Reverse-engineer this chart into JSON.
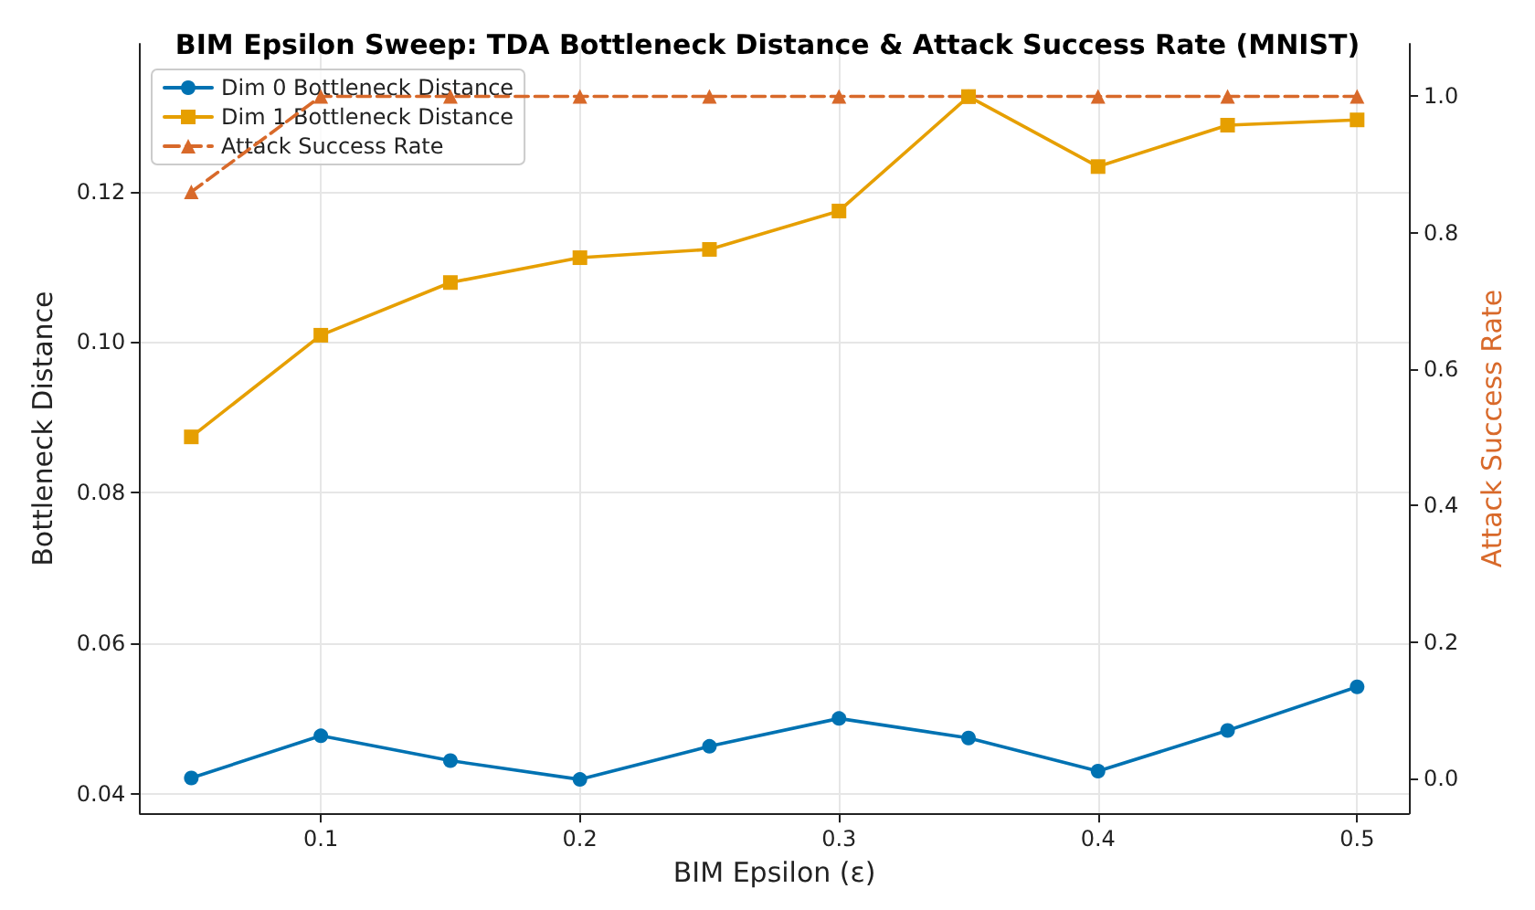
{
  "chart_data": {
    "type": "line",
    "title": "BIM Epsilon Sweep: TDA Bottleneck Distance & Attack Success Rate (MNIST)",
    "xlabel": "BIM Epsilon (ε)",
    "ylabel": "Bottleneck Distance",
    "y2label": "Attack Success Rate",
    "x": [
      0.05,
      0.1,
      0.15,
      0.2,
      0.25,
      0.3,
      0.35,
      0.4,
      0.45,
      0.5
    ],
    "series": [
      {
        "name": "Dim 0 Bottleneck Distance",
        "color": "#0072b2",
        "marker": "circle",
        "line_style": "solid",
        "values": [
          0.0421,
          0.0477,
          0.0444,
          0.0419,
          0.0463,
          0.05,
          0.0474,
          0.043,
          0.0484,
          0.0542
        ]
      },
      {
        "name": "Dim 1 Bottleneck Distance",
        "color": "#e69f00",
        "marker": "square",
        "line_style": "solid",
        "values": [
          0.0874,
          0.1009,
          0.1079,
          0.1112,
          0.1123,
          0.1174,
          0.1326,
          0.1233,
          0.1288,
          0.1295
        ]
      },
      {
        "name": "Attack Success Rate",
        "color": "#d8692a",
        "marker": "triangle",
        "line_style": "dashed",
        "axis": "y2",
        "values": [
          0.86,
          1.0,
          1.0,
          1.0,
          1.0,
          1.0,
          1.0,
          1.0,
          1.0,
          1.0
        ]
      }
    ],
    "xlim": [
      0.0302,
      0.52
    ],
    "xticks": [
      0.1,
      0.2,
      0.3,
      0.4,
      0.5
    ],
    "ylim": [
      0.0374,
      0.1396
    ],
    "yticks": [
      0.04,
      0.06,
      0.08,
      {
        "value": 0.1,
        "label": "0.10"
      },
      0.12
    ],
    "y2lim": [
      -0.051,
      1.077
    ],
    "y2ticks": [
      {
        "value": 0,
        "label": "0.0"
      },
      {
        "value": 0.2,
        "label": "0.2"
      },
      {
        "value": 0.4,
        "label": "0.4"
      },
      {
        "value": 0.6,
        "label": "0.6"
      },
      {
        "value": 0.8,
        "label": "0.8"
      },
      {
        "value": 1,
        "label": "1.0"
      }
    ],
    "grid": true,
    "legend": "top left"
  }
}
